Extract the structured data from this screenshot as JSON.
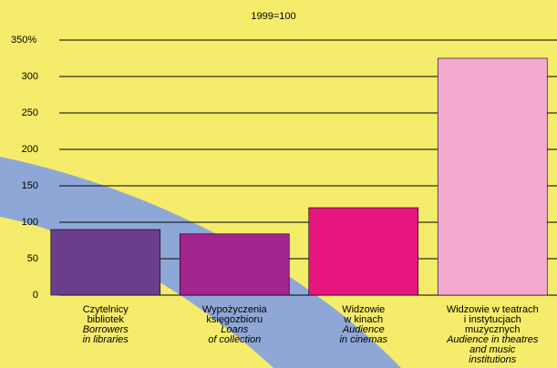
{
  "chart_data": {
    "type": "bar",
    "subtitle": "1999=100",
    "categories": [
      {
        "pl": [
          "Czytelnicy",
          "bibliotek"
        ],
        "en": [
          "Borrowers",
          "in libraries"
        ]
      },
      {
        "pl": [
          "Wypożyczenia",
          "księgozbioru"
        ],
        "en": [
          "Loans",
          "of collection"
        ]
      },
      {
        "pl": [
          "Widzowie",
          "w kinach"
        ],
        "en": [
          "Audience",
          "in cinemas"
        ]
      },
      {
        "pl": [
          "Widzowie w teatrach",
          "i instytucjach",
          "muzycznych"
        ],
        "en": [
          "Audience in theatres",
          "and music",
          "institutions"
        ]
      }
    ],
    "values": [
      90,
      84,
      120,
      325
    ],
    "colors": [
      "#6a3d8d",
      "#a1248f",
      "#e6157f",
      "#f4a9cf"
    ],
    "ylim": [
      0,
      350
    ],
    "yticks": [
      0,
      50,
      100,
      150,
      200,
      250,
      300,
      {
        "value": 350,
        "label": "350%"
      }
    ],
    "grid": true
  }
}
